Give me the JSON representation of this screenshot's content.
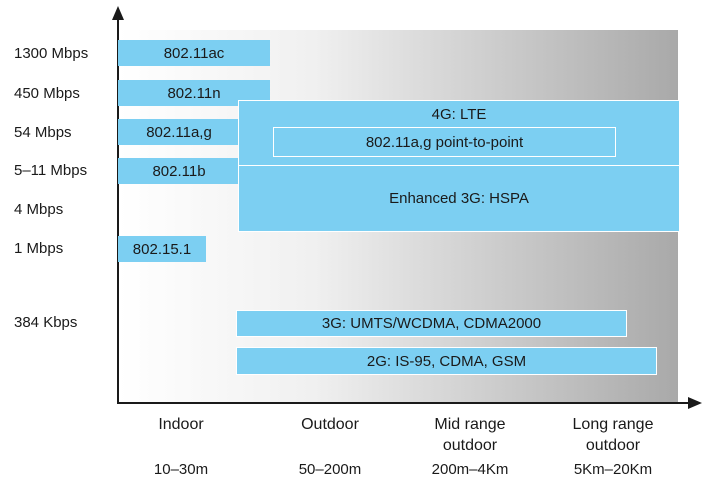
{
  "y_labels": [
    "1300 Mbps",
    "450 Mbps",
    "54 Mbps",
    "5–11 Mbps",
    "4 Mbps",
    "1 Mbps",
    "384 Kbps"
  ],
  "x_categories": [
    {
      "name": "Indoor",
      "range": "10–30m"
    },
    {
      "name": "Outdoor",
      "range": "50–200m"
    },
    {
      "name": "Mid range\noutdoor",
      "range": "200m–4Km"
    },
    {
      "name": "Long range\noutdoor",
      "range": "5Km–20Km"
    }
  ],
  "standards": {
    "ac": "802.11ac",
    "n": "802.11n",
    "ag": "802.11a,g",
    "b": "802.11b",
    "bt": "802.15.1",
    "lte": "4G: LTE",
    "p2p": "802.11a,g point-to-point",
    "hspa": "Enhanced 3G: HSPA",
    "umts": "3G: UMTS/WCDMA, CDMA2000",
    "gsm": "2G: IS-95, CDMA, GSM"
  },
  "colors": {
    "box": "#7ccff2",
    "axis": "#1a1a1a"
  }
}
